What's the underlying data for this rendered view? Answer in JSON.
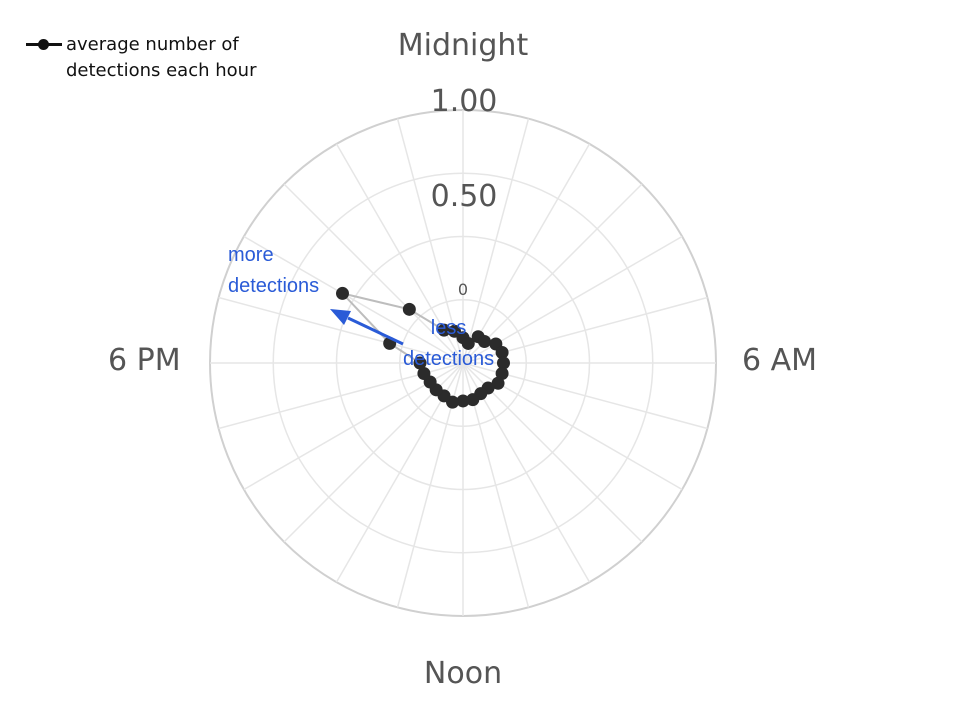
{
  "chart_data": {
    "type": "radar",
    "legend": {
      "label": "average number of\ndetections each hour",
      "position": "top-left"
    },
    "direction_labels": {
      "top": "Midnight",
      "right": "6 AM",
      "bottom": "Noon",
      "left": "6 PM"
    },
    "radial_ticks": [
      "1.00",
      "0.50",
      "0"
    ],
    "radial_range": [
      0,
      1.0
    ],
    "spokes": 24,
    "series": [
      {
        "name": "average number of detections each hour",
        "values": [
          0.1,
          0.08,
          0.12,
          0.12,
          0.15,
          0.16,
          0.16,
          0.16,
          0.16,
          0.14,
          0.14,
          0.15,
          0.15,
          0.16,
          0.15,
          0.15,
          0.15,
          0.16,
          0.17,
          0.3,
          0.55,
          0.3,
          0.15,
          0.13
        ]
      }
    ],
    "annotations": {
      "more": "more\ndetections",
      "less": "less\ndetections"
    },
    "colors": {
      "series": "#2b2b2b",
      "series_line": "#bdbdbd",
      "grid": "#e6e6e6",
      "outer_ring": "#d0d0d0",
      "annotation": "#2a5bd7"
    }
  }
}
